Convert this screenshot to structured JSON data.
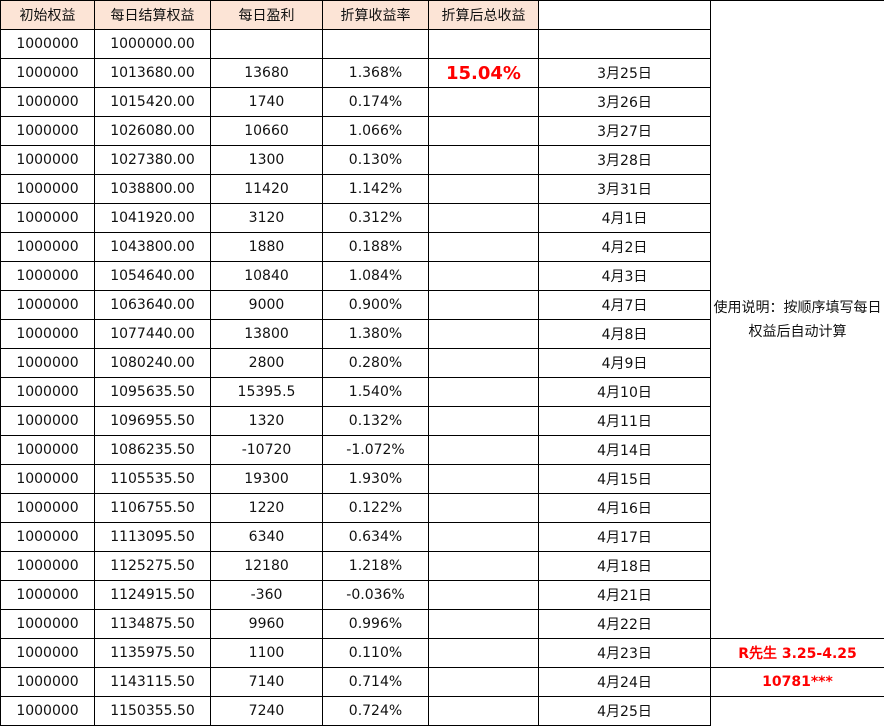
{
  "headers": [
    "初始权益",
    "每日结算权益",
    "每日盈利",
    "折算收益率",
    "折算后总收益",
    ""
  ],
  "total_return": "15.04%",
  "note": "使用说明：按顺序填写每日权益后自动计算",
  "footer_label_1": "R先生  3.25-4.25",
  "footer_label_2": "10781***",
  "accent_color": "#ff0000",
  "header_bg": "#fce4d6",
  "rows": [
    [
      "1000000",
      "1000000.00",
      "",
      "",
      "",
      ""
    ],
    [
      "1000000",
      "1013680.00",
      "13680",
      "1.368%",
      "15.04%",
      "3月25日"
    ],
    [
      "1000000",
      "1015420.00",
      "1740",
      "0.174%",
      "",
      "3月26日"
    ],
    [
      "1000000",
      "1026080.00",
      "10660",
      "1.066%",
      "",
      "3月27日"
    ],
    [
      "1000000",
      "1027380.00",
      "1300",
      "0.130%",
      "",
      "3月28日"
    ],
    [
      "1000000",
      "1038800.00",
      "11420",
      "1.142%",
      "",
      "3月31日"
    ],
    [
      "1000000",
      "1041920.00",
      "3120",
      "0.312%",
      "",
      "4月1日"
    ],
    [
      "1000000",
      "1043800.00",
      "1880",
      "0.188%",
      "",
      "4月2日"
    ],
    [
      "1000000",
      "1054640.00",
      "10840",
      "1.084%",
      "",
      "4月3日"
    ],
    [
      "1000000",
      "1063640.00",
      "9000",
      "0.900%",
      "",
      "4月7日"
    ],
    [
      "1000000",
      "1077440.00",
      "13800",
      "1.380%",
      "",
      "4月8日"
    ],
    [
      "1000000",
      "1080240.00",
      "2800",
      "0.280%",
      "",
      "4月9日"
    ],
    [
      "1000000",
      "1095635.50",
      "15395.5",
      "1.540%",
      "",
      "4月10日"
    ],
    [
      "1000000",
      "1096955.50",
      "1320",
      "0.132%",
      "",
      "4月11日"
    ],
    [
      "1000000",
      "1086235.50",
      "-10720",
      "-1.072%",
      "",
      "4月14日"
    ],
    [
      "1000000",
      "1105535.50",
      "19300",
      "1.930%",
      "",
      "4月15日"
    ],
    [
      "1000000",
      "1106755.50",
      "1220",
      "0.122%",
      "",
      "4月16日"
    ],
    [
      "1000000",
      "1113095.50",
      "6340",
      "0.634%",
      "",
      "4月17日"
    ],
    [
      "1000000",
      "1125275.50",
      "12180",
      "1.218%",
      "",
      "4月18日"
    ],
    [
      "1000000",
      "1124915.50",
      "-360",
      "-0.036%",
      "",
      "4月21日"
    ],
    [
      "1000000",
      "1134875.50",
      "9960",
      "0.996%",
      "",
      "4月22日"
    ],
    [
      "1000000",
      "1135975.50",
      "1100",
      "0.110%",
      "",
      "4月23日"
    ],
    [
      "1000000",
      "1143115.50",
      "7140",
      "0.714%",
      "",
      "4月24日"
    ],
    [
      "1000000",
      "1150355.50",
      "7240",
      "0.724%",
      "",
      "4月25日"
    ]
  ]
}
